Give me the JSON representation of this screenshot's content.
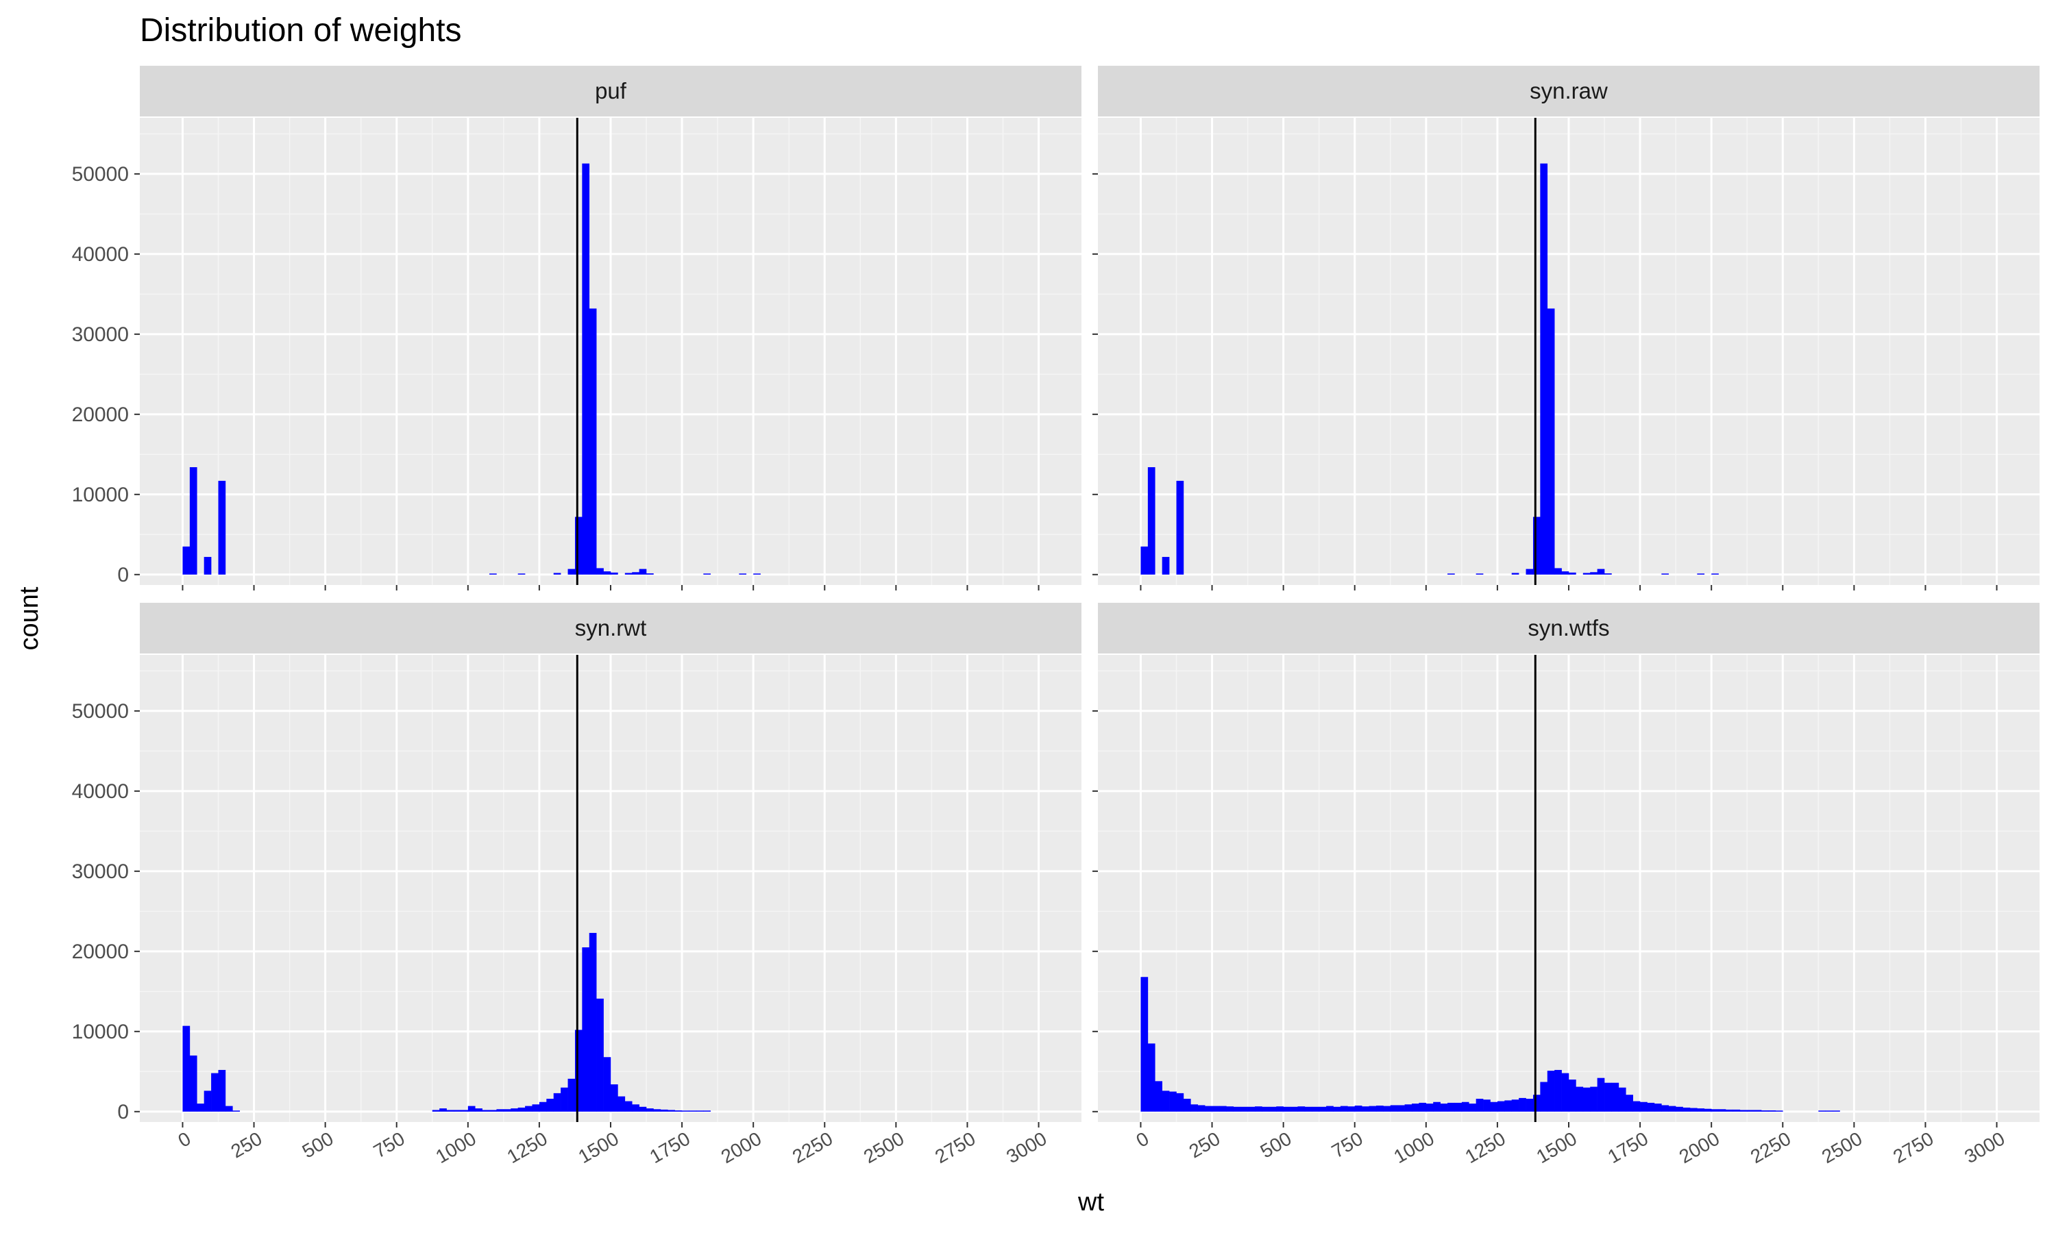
{
  "chart_data": {
    "type": "bar",
    "title": "Distribution of weights",
    "xlabel": "wt",
    "ylabel": "count",
    "xlim": [
      -150,
      3150
    ],
    "ylim": [
      -1300,
      57000
    ],
    "x_ticks": [
      0,
      250,
      500,
      750,
      1000,
      1250,
      1500,
      1750,
      2000,
      2250,
      2500,
      2750,
      3000
    ],
    "y_ticks": [
      0,
      10000,
      20000,
      30000,
      40000,
      50000
    ],
    "bin_width": 25,
    "bar_color": "#0000ff",
    "vline": {
      "x": 1383,
      "color": "#000000"
    },
    "grid": true,
    "legend": "none",
    "facets": [
      {
        "name": "puf",
        "bins": [
          [
            12.5,
            3500
          ],
          [
            37.5,
            13400
          ],
          [
            87.5,
            2200
          ],
          [
            137.5,
            11700
          ],
          [
            1087.5,
            60
          ],
          [
            1187.5,
            50
          ],
          [
            1312.5,
            200
          ],
          [
            1362.5,
            700
          ],
          [
            1387.5,
            7200
          ],
          [
            1412.5,
            51300
          ],
          [
            1437.5,
            33200
          ],
          [
            1462.5,
            800
          ],
          [
            1487.5,
            400
          ],
          [
            1512.5,
            250
          ],
          [
            1562.5,
            200
          ],
          [
            1587.5,
            300
          ],
          [
            1612.5,
            700
          ],
          [
            1637.5,
            150
          ],
          [
            1837.5,
            60
          ],
          [
            1962.5,
            50
          ],
          [
            2012.5,
            40
          ]
        ]
      },
      {
        "name": "syn.raw",
        "bins": [
          [
            12.5,
            3500
          ],
          [
            37.5,
            13400
          ],
          [
            87.5,
            2200
          ],
          [
            137.5,
            11700
          ],
          [
            1087.5,
            60
          ],
          [
            1187.5,
            50
          ],
          [
            1312.5,
            200
          ],
          [
            1362.5,
            700
          ],
          [
            1387.5,
            7200
          ],
          [
            1412.5,
            51300
          ],
          [
            1437.5,
            33200
          ],
          [
            1462.5,
            800
          ],
          [
            1487.5,
            400
          ],
          [
            1512.5,
            250
          ],
          [
            1562.5,
            200
          ],
          [
            1587.5,
            300
          ],
          [
            1612.5,
            700
          ],
          [
            1637.5,
            150
          ],
          [
            1837.5,
            60
          ],
          [
            1962.5,
            50
          ],
          [
            2012.5,
            40
          ]
        ]
      },
      {
        "name": "syn.rwt",
        "bins": [
          [
            12.5,
            10700
          ],
          [
            37.5,
            7000
          ],
          [
            62.5,
            1000
          ],
          [
            87.5,
            2600
          ],
          [
            112.5,
            4800
          ],
          [
            137.5,
            5200
          ],
          [
            162.5,
            700
          ],
          [
            187.5,
            100
          ],
          [
            887.5,
            200
          ],
          [
            912.5,
            400
          ],
          [
            937.5,
            200
          ],
          [
            962.5,
            200
          ],
          [
            987.5,
            200
          ],
          [
            1012.5,
            700
          ],
          [
            1037.5,
            400
          ],
          [
            1062.5,
            200
          ],
          [
            1087.5,
            200
          ],
          [
            1112.5,
            300
          ],
          [
            1137.5,
            300
          ],
          [
            1162.5,
            400
          ],
          [
            1187.5,
            500
          ],
          [
            1212.5,
            700
          ],
          [
            1237.5,
            900
          ],
          [
            1262.5,
            1200
          ],
          [
            1287.5,
            1600
          ],
          [
            1312.5,
            2300
          ],
          [
            1337.5,
            3000
          ],
          [
            1362.5,
            4100
          ],
          [
            1387.5,
            10200
          ],
          [
            1412.5,
            20500
          ],
          [
            1437.5,
            22300
          ],
          [
            1462.5,
            14100
          ],
          [
            1487.5,
            6800
          ],
          [
            1512.5,
            3400
          ],
          [
            1537.5,
            1900
          ],
          [
            1562.5,
            1300
          ],
          [
            1587.5,
            900
          ],
          [
            1612.5,
            600
          ],
          [
            1637.5,
            400
          ],
          [
            1662.5,
            300
          ],
          [
            1687.5,
            250
          ],
          [
            1712.5,
            200
          ],
          [
            1737.5,
            150
          ],
          [
            1762.5,
            120
          ],
          [
            1787.5,
            100
          ],
          [
            1812.5,
            80
          ],
          [
            1837.5,
            60
          ]
        ]
      },
      {
        "name": "syn.wtfs",
        "bins": [
          [
            12.5,
            16800
          ],
          [
            37.5,
            8500
          ],
          [
            62.5,
            3800
          ],
          [
            87.5,
            2600
          ],
          [
            112.5,
            2500
          ],
          [
            137.5,
            2300
          ],
          [
            162.5,
            1600
          ],
          [
            187.5,
            900
          ],
          [
            212.5,
            800
          ],
          [
            237.5,
            700
          ],
          [
            262.5,
            700
          ],
          [
            287.5,
            700
          ],
          [
            312.5,
            650
          ],
          [
            337.5,
            600
          ],
          [
            362.5,
            600
          ],
          [
            387.5,
            600
          ],
          [
            412.5,
            650
          ],
          [
            437.5,
            600
          ],
          [
            462.5,
            600
          ],
          [
            487.5,
            650
          ],
          [
            512.5,
            600
          ],
          [
            537.5,
            600
          ],
          [
            562.5,
            650
          ],
          [
            587.5,
            600
          ],
          [
            612.5,
            600
          ],
          [
            637.5,
            600
          ],
          [
            662.5,
            700
          ],
          [
            687.5,
            600
          ],
          [
            712.5,
            700
          ],
          [
            737.5,
            650
          ],
          [
            762.5,
            750
          ],
          [
            787.5,
            650
          ],
          [
            812.5,
            700
          ],
          [
            837.5,
            750
          ],
          [
            862.5,
            700
          ],
          [
            887.5,
            800
          ],
          [
            912.5,
            800
          ],
          [
            937.5,
            900
          ],
          [
            962.5,
            1000
          ],
          [
            987.5,
            1100
          ],
          [
            1012.5,
            1000
          ],
          [
            1037.5,
            1200
          ],
          [
            1062.5,
            1000
          ],
          [
            1087.5,
            1100
          ],
          [
            1112.5,
            1100
          ],
          [
            1137.5,
            1200
          ],
          [
            1162.5,
            1000
          ],
          [
            1187.5,
            1600
          ],
          [
            1212.5,
            1500
          ],
          [
            1237.5,
            1200
          ],
          [
            1262.5,
            1300
          ],
          [
            1287.5,
            1400
          ],
          [
            1312.5,
            1500
          ],
          [
            1337.5,
            1700
          ],
          [
            1362.5,
            1600
          ],
          [
            1387.5,
            2100
          ],
          [
            1412.5,
            3700
          ],
          [
            1437.5,
            5100
          ],
          [
            1462.5,
            5200
          ],
          [
            1487.5,
            4800
          ],
          [
            1512.5,
            4000
          ],
          [
            1537.5,
            3100
          ],
          [
            1562.5,
            3000
          ],
          [
            1587.5,
            3100
          ],
          [
            1612.5,
            4200
          ],
          [
            1637.5,
            3600
          ],
          [
            1662.5,
            3600
          ],
          [
            1687.5,
            3000
          ],
          [
            1712.5,
            2100
          ],
          [
            1737.5,
            1300
          ],
          [
            1762.5,
            1200
          ],
          [
            1787.5,
            1100
          ],
          [
            1812.5,
            1000
          ],
          [
            1837.5,
            800
          ],
          [
            1862.5,
            700
          ],
          [
            1887.5,
            600
          ],
          [
            1912.5,
            500
          ],
          [
            1937.5,
            450
          ],
          [
            1962.5,
            400
          ],
          [
            1987.5,
            350
          ],
          [
            2012.5,
            300
          ],
          [
            2037.5,
            300
          ],
          [
            2062.5,
            250
          ],
          [
            2087.5,
            250
          ],
          [
            2112.5,
            200
          ],
          [
            2137.5,
            200
          ],
          [
            2162.5,
            200
          ],
          [
            2187.5,
            150
          ],
          [
            2212.5,
            150
          ],
          [
            2237.5,
            120
          ],
          [
            2387.5,
            80
          ],
          [
            2412.5,
            80
          ],
          [
            2437.5,
            60
          ]
        ]
      }
    ]
  }
}
